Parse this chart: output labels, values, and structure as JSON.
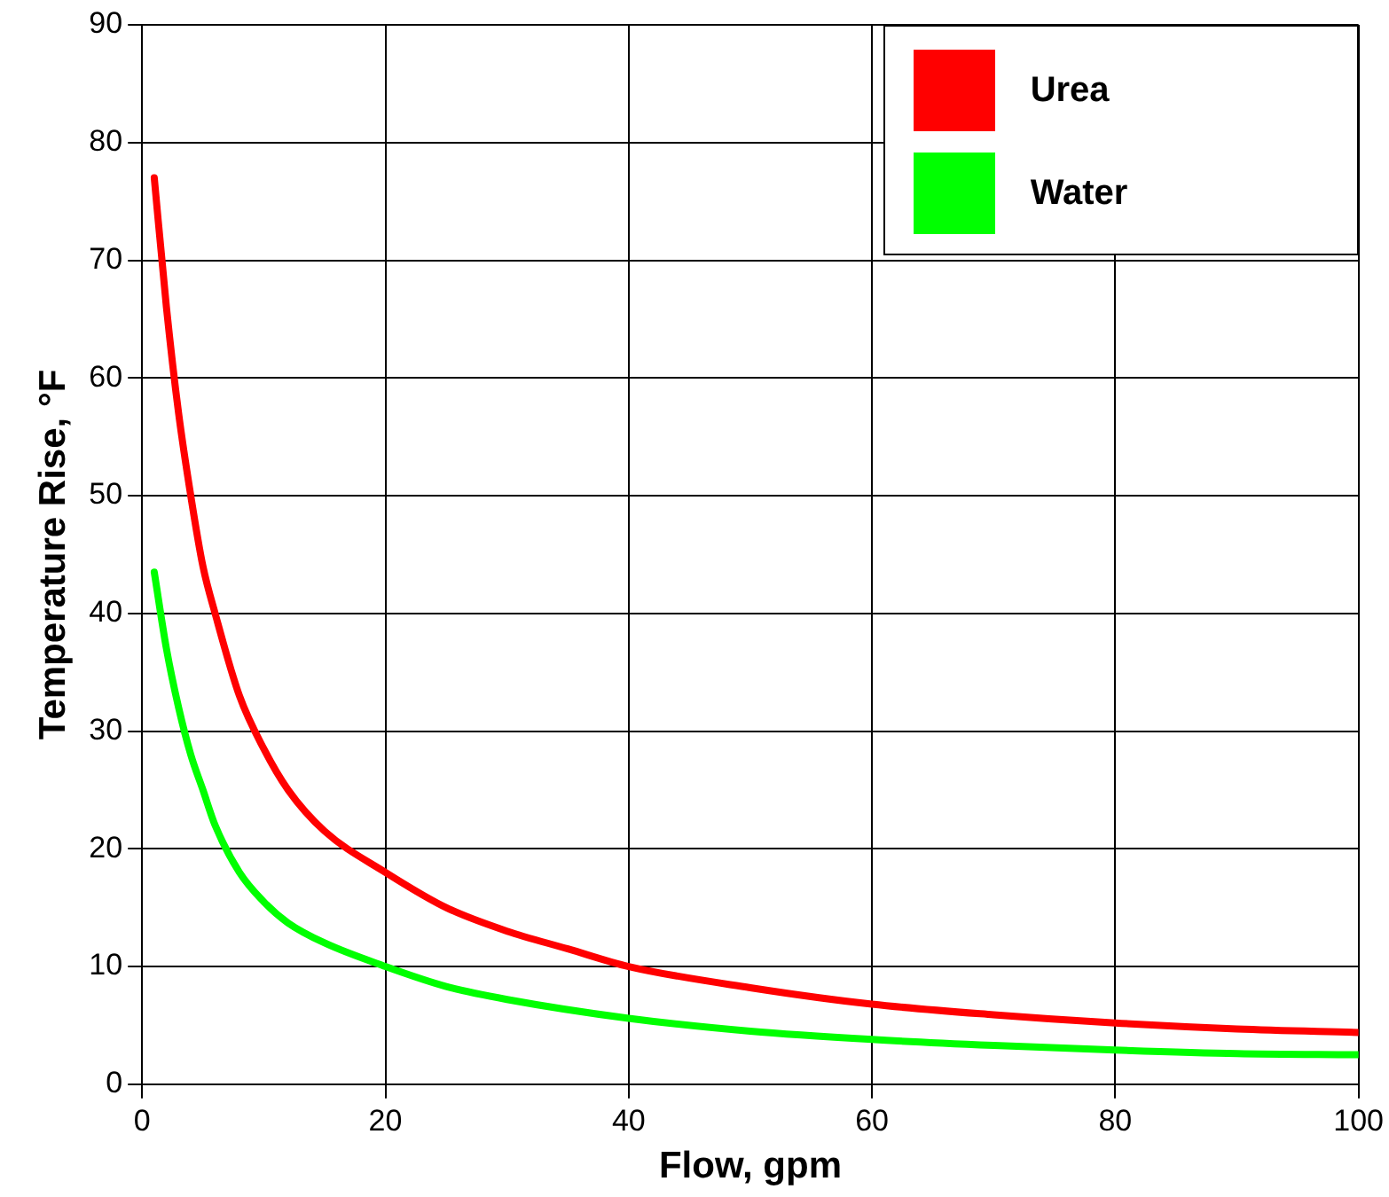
{
  "chart_data": {
    "type": "line",
    "xlabel": "Flow, gpm",
    "ylabel": "Temperature Rise, °F",
    "xlim": [
      0,
      100
    ],
    "xticks": [
      0,
      20,
      40,
      60,
      80,
      100
    ],
    "ylim": [
      0,
      90
    ],
    "yticks": [
      0,
      10,
      20,
      30,
      40,
      50,
      60,
      70,
      80,
      90
    ],
    "grid": true,
    "legend": "top right",
    "marker": "none",
    "line_style": "solid",
    "series": [
      {
        "name": "Urea",
        "color": "#ff0000",
        "x": [
          1,
          2,
          3,
          4,
          5,
          6,
          8,
          10,
          12,
          15,
          20,
          25,
          30,
          35,
          40,
          50,
          60,
          70,
          80,
          90,
          100
        ],
        "values": [
          77,
          66,
          57,
          50,
          44,
          40,
          33,
          28.5,
          25,
          21.5,
          18,
          15,
          13,
          11.5,
          10,
          8.2,
          6.8,
          5.9,
          5.2,
          4.7,
          4.4
        ]
      },
      {
        "name": "Water",
        "color": "#00ff00",
        "x": [
          1,
          2,
          3,
          4,
          5,
          6,
          8,
          10,
          12,
          15,
          20,
          25,
          30,
          40,
          50,
          60,
          70,
          80,
          90,
          100
        ],
        "values": [
          43.5,
          37,
          32,
          28,
          25,
          22,
          18,
          15.5,
          13.7,
          12,
          10,
          8.3,
          7.2,
          5.6,
          4.5,
          3.8,
          3.3,
          2.9,
          2.6,
          2.5
        ]
      }
    ]
  }
}
